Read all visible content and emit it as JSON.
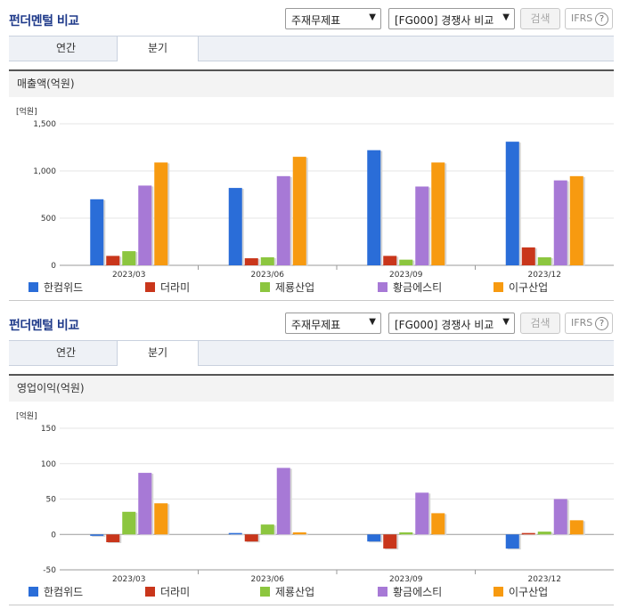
{
  "colors": [
    "#2a6dd8",
    "#c9361b",
    "#8cc63f",
    "#a779d6",
    "#f79a10"
  ],
  "sections": [
    {
      "header": {
        "title": "펀더멘털 비교",
        "statement_select": "주재무제표",
        "peer_select": "[FG000] 경쟁사 비교",
        "search_label": "검색",
        "ifrs_label": "IFRS",
        "help_glyph": "?"
      },
      "tabs": [
        "연간",
        "분기"
      ],
      "active_tab": "분기",
      "chart_title": "매출액(억원)",
      "chart_data": {
        "type": "bar",
        "unit_label": "[억원]",
        "categories": [
          "2023/03",
          "2023/06",
          "2023/09",
          "2023/12"
        ],
        "ylim": [
          0,
          1500
        ],
        "yticks": [
          0,
          500,
          1000,
          1500
        ],
        "ytick_labels": [
          "0",
          "500",
          "1,000",
          "1,500"
        ],
        "legend_position": "bottom",
        "series": [
          {
            "name": "한컴위드",
            "values": [
              700,
              820,
              1220,
              1310
            ]
          },
          {
            "name": "더라미",
            "values": [
              100,
              75,
              100,
              190
            ]
          },
          {
            "name": "제룡산업",
            "values": [
              150,
              85,
              60,
              85
            ]
          },
          {
            "name": "황금에스티",
            "values": [
              845,
              945,
              835,
              900
            ]
          },
          {
            "name": "이구산업",
            "values": [
              1090,
              1150,
              1090,
              945
            ]
          }
        ]
      }
    },
    {
      "header": {
        "title": "펀더멘털 비교",
        "statement_select": "주재무제표",
        "peer_select": "[FG000] 경쟁사 비교",
        "search_label": "검색",
        "ifrs_label": "IFRS",
        "help_glyph": "?"
      },
      "tabs": [
        "연간",
        "분기"
      ],
      "active_tab": "분기",
      "chart_title": "영업이익(억원)",
      "chart_data": {
        "type": "bar",
        "unit_label": "[억원]",
        "categories": [
          "2023/03",
          "2023/06",
          "2023/09",
          "2023/12"
        ],
        "ylim": [
          -50,
          150
        ],
        "yticks": [
          -50,
          0,
          50,
          100,
          150
        ],
        "ytick_labels": [
          "-50",
          "0",
          "50",
          "100",
          "150"
        ],
        "legend_position": "bottom",
        "series": [
          {
            "name": "한컴위드",
            "values": [
              -2,
              2,
              -10,
              -20
            ]
          },
          {
            "name": "더라미",
            "values": [
              -11,
              -10,
              -20,
              2
            ]
          },
          {
            "name": "제룡산업",
            "values": [
              32,
              14,
              3,
              4
            ]
          },
          {
            "name": "황금에스티",
            "values": [
              87,
              94,
              59,
              50
            ]
          },
          {
            "name": "이구산업",
            "values": [
              44,
              3,
              30,
              20
            ]
          }
        ]
      }
    }
  ]
}
